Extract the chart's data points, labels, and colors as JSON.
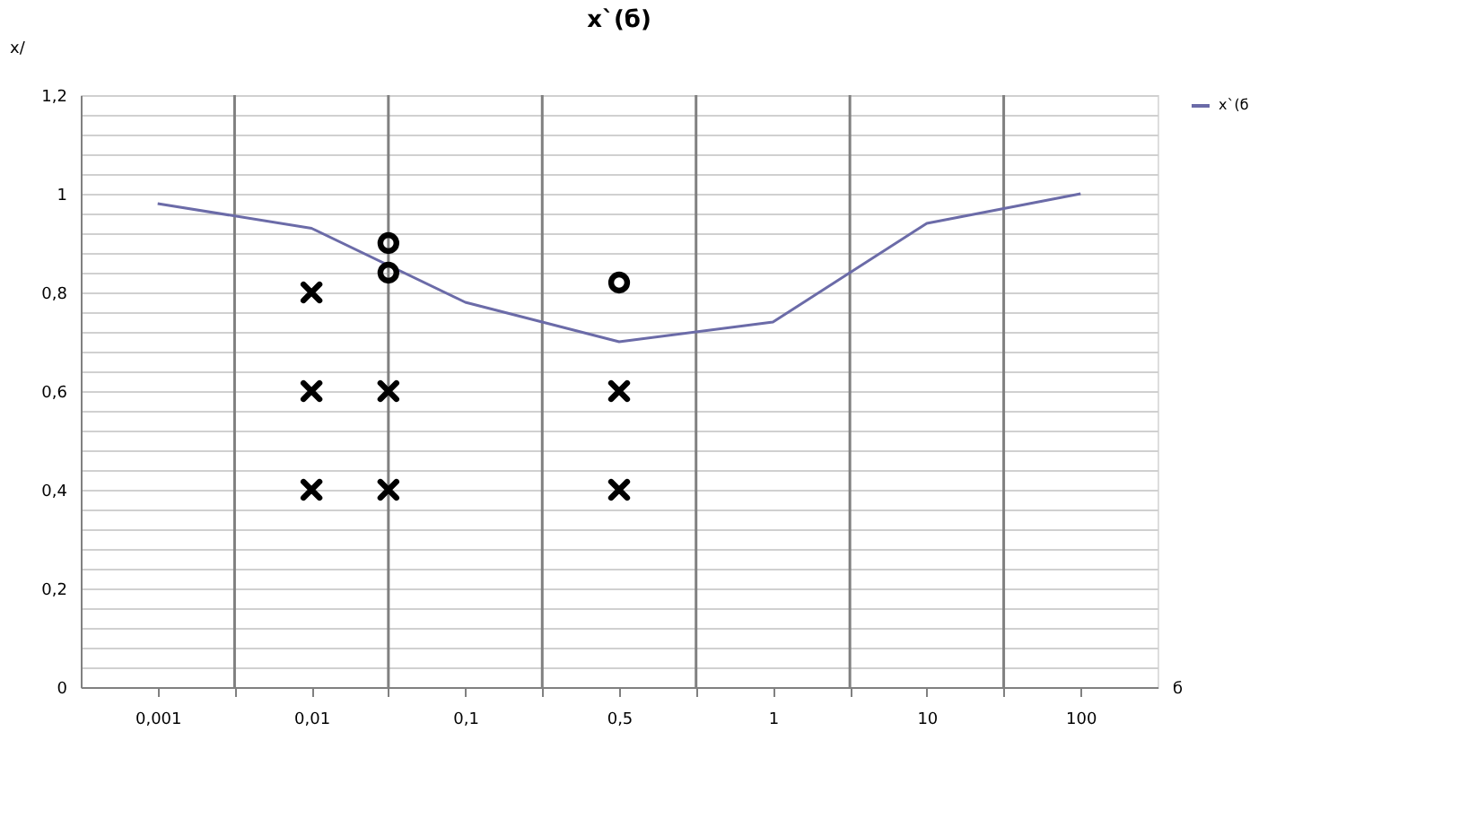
{
  "chart_data": {
    "type": "line",
    "title": "x`(б)",
    "ylabel": "x/",
    "xlabel": "б",
    "categories": [
      "0,001",
      null,
      "0,01",
      null,
      "0,1",
      null,
      "0,5",
      null,
      "1",
      null,
      "10",
      null,
      "100"
    ],
    "ylim": [
      0,
      1.2
    ],
    "yticks": [
      0,
      {
        "value": 0.04,
        "label": null
      },
      {
        "value": 0.08,
        "label": null
      },
      {
        "value": 0.12,
        "label": null
      },
      {
        "value": 0.16,
        "label": null
      },
      {
        "value": 0.2,
        "label": "0,2"
      },
      {
        "value": 0.24,
        "label": null
      },
      {
        "value": 0.28,
        "label": null
      },
      {
        "value": 0.32,
        "label": null
      },
      {
        "value": 0.36,
        "label": null
      },
      {
        "value": 0.4,
        "label": "0,4"
      },
      {
        "value": 0.44,
        "label": null
      },
      {
        "value": 0.48,
        "label": null
      },
      {
        "value": 0.52,
        "label": null
      },
      {
        "value": 0.56,
        "label": null
      },
      {
        "value": 0.6,
        "label": "0,6"
      },
      {
        "value": 0.64,
        "label": null
      },
      {
        "value": 0.68,
        "label": null
      },
      {
        "value": 0.72,
        "label": null
      },
      {
        "value": 0.76,
        "label": null
      },
      {
        "value": 0.8,
        "label": "0,8"
      },
      {
        "value": 0.84,
        "label": null
      },
      {
        "value": 0.88,
        "label": null
      },
      {
        "value": 0.92,
        "label": null
      },
      {
        "value": 0.96,
        "label": null
      },
      {
        "value": 1,
        "label": "1"
      },
      {
        "value": 1.04,
        "label": null
      },
      {
        "value": 1.08,
        "label": null
      },
      {
        "value": 1.12,
        "label": null
      },
      {
        "value": 1.16,
        "label": null
      },
      {
        "value": 1.2,
        "label": "1,2"
      }
    ],
    "grid": true,
    "legend": "right",
    "series": [
      {
        "name": "x`(б",
        "color": "#6b6ba8",
        "x": [
          "0,001",
          "0,01",
          "0,1",
          "0,5",
          "1",
          "10",
          "100"
        ],
        "values": [
          0.98,
          0.93,
          0.78,
          0.7,
          0.74,
          0.94,
          1.0
        ]
      },
      {
        "type": "scatter",
        "marker": "cross",
        "color": "#000000",
        "values": [
          null,
          null,
          0.8,
          0.6,
          null,
          null,
          0.6,
          null,
          null,
          null,
          null,
          null,
          null
        ]
      },
      {
        "type": "scatter",
        "marker": "cross",
        "color": "#000000",
        "values": [
          null,
          null,
          0.6,
          0.4,
          null,
          null,
          0.4,
          null,
          null,
          null,
          null,
          null,
          null
        ]
      },
      {
        "type": "scatter",
        "marker": "cross",
        "color": "#000000",
        "values": [
          null,
          null,
          0.4,
          null,
          null,
          null,
          null,
          null,
          null,
          null,
          null,
          null,
          null
        ]
      },
      {
        "type": "scatter",
        "marker": "circle",
        "color": "#000000",
        "values": [
          null,
          null,
          null,
          0.9,
          null,
          null,
          0.82,
          null,
          null,
          null,
          null,
          null,
          null
        ]
      },
      {
        "type": "scatter",
        "marker": "circle",
        "color": "#000000",
        "values": [
          null,
          null,
          null,
          0.84,
          null,
          null,
          null,
          null,
          null,
          null,
          null,
          null,
          null
        ]
      }
    ]
  }
}
